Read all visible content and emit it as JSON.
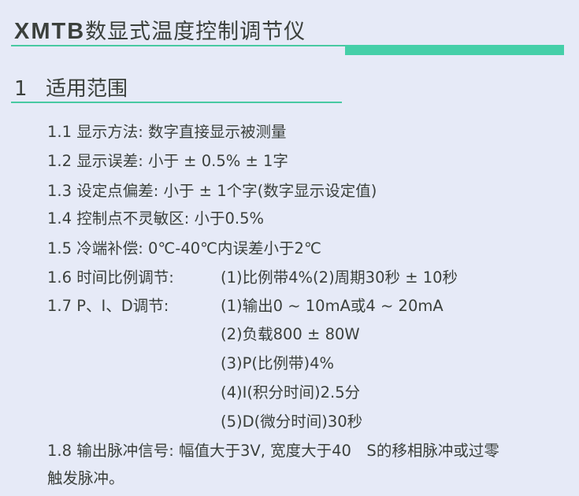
{
  "title": {
    "prefix": "XMTB",
    "text": "数显式温度控制调节仪"
  },
  "section": {
    "number": "1",
    "title": "适用范围"
  },
  "items": [
    {
      "text": "1.1 显示方法:  数字直接显示被测量"
    },
    {
      "text": "1.2  显示误差:  小于 ± 0.5% ± 1字"
    },
    {
      "text": "1.3  设定点偏差:  小于 ± 1个字(数字显示设定值)"
    },
    {
      "text": "1.4  控制点不灵敏区:  小于0.5%"
    },
    {
      "text": "1.5  冷端补偿:  0℃-40℃内误差小于2℃"
    },
    {
      "label": "1.6  时间比例调节:",
      "value": "(1)比例带4%(2)周期30秒 ± 10秒"
    },
    {
      "label": "1.7  P、I、D调节:",
      "value": "(1)输出0 ~ 10mA或4 ~ 20mA"
    },
    {
      "value": "(2)负载800 ± 80W"
    },
    {
      "value": "(3)P(比例带)4%"
    },
    {
      "value": "(4)I(积分时间)2.5分"
    },
    {
      "value": "(5)D(微分时间)30秒"
    },
    {
      "text": "1.8  输出脉冲信号:  幅值大于3V,  宽度大于40　S的移相脉冲或过零"
    },
    {
      "text": "触发脉冲。"
    }
  ]
}
